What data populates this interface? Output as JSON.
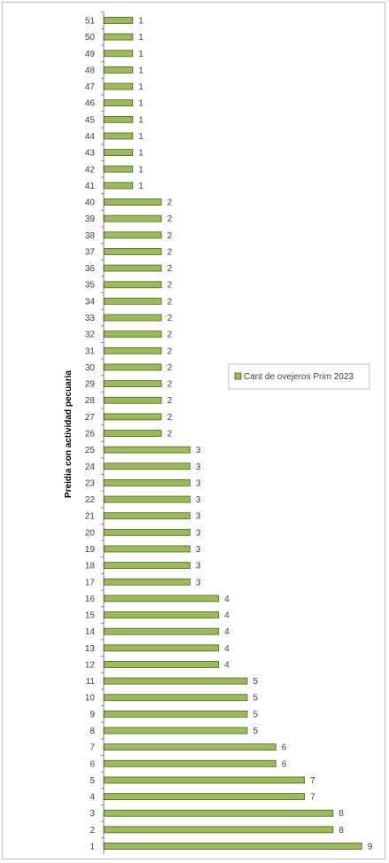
{
  "colors": {
    "bar_fill": "#9bbb59",
    "bar_stroke": "#4f6228",
    "axis": "#808080",
    "text": "#404040"
  },
  "chart_data": {
    "type": "bar",
    "orientation": "horizontal",
    "ylabel": "Preidia con actividad pecuaria",
    "xlabel": "",
    "title": "",
    "categories": [
      "1",
      "2",
      "3",
      "4",
      "5",
      "6",
      "7",
      "8",
      "9",
      "10",
      "11",
      "12",
      "13",
      "14",
      "15",
      "16",
      "17",
      "18",
      "19",
      "20",
      "21",
      "22",
      "23",
      "24",
      "25",
      "26",
      "27",
      "28",
      "29",
      "30",
      "31",
      "32",
      "33",
      "34",
      "35",
      "36",
      "37",
      "38",
      "39",
      "40",
      "41",
      "42",
      "43",
      "44",
      "45",
      "46",
      "47",
      "48",
      "49",
      "50",
      "51"
    ],
    "series": [
      {
        "name": "Cant de ovejeros Prim 2023",
        "values": [
          9,
          8,
          8,
          7,
          7,
          6,
          6,
          5,
          5,
          5,
          5,
          4,
          4,
          4,
          4,
          4,
          3,
          3,
          3,
          3,
          3,
          3,
          3,
          3,
          3,
          2,
          2,
          2,
          2,
          2,
          2,
          2,
          2,
          2,
          2,
          2,
          2,
          2,
          2,
          2,
          1,
          1,
          1,
          1,
          1,
          1,
          1,
          1,
          1,
          1,
          1
        ]
      }
    ],
    "xlim": [
      0,
      9
    ],
    "grid": false,
    "data_labels": true,
    "legend_position": "right"
  }
}
